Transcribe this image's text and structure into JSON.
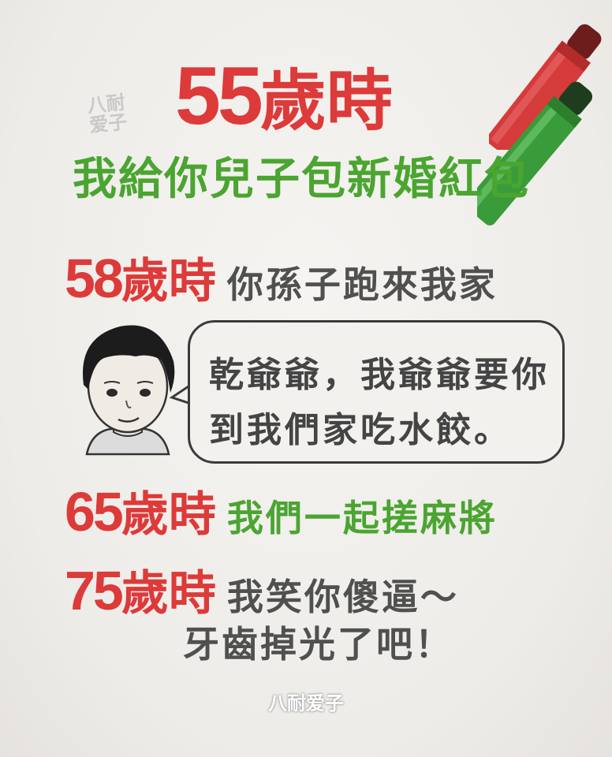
{
  "heading": {
    "age": "55",
    "unit": "歲時",
    "line": "我給你兒子包新婚紅包"
  },
  "rows": [
    {
      "age": "58",
      "unit": "歲時",
      "text": "你孫子跑來我家"
    },
    {
      "age": "65",
      "unit": "歲時",
      "text": "我們一起搓麻將"
    },
    {
      "age": "75",
      "unit": "歲時",
      "text": "我笑你傻逼～",
      "text2": "牙齒掉光了吧！"
    }
  ],
  "bubble": {
    "line1": "乾爺爺，我爺爺要你",
    "line2": "到我們家吃水餃。"
  },
  "watermark": {
    "top": "八耐\n爱子",
    "bottom": "八耐爱子"
  },
  "colors": {
    "red": "#dd3a3a",
    "green": "#4aa531",
    "gray": "#505050",
    "paper": "#f1efec"
  },
  "icons": [
    "red-marker-icon",
    "green-marker-icon",
    "boy-avatar-icon"
  ]
}
